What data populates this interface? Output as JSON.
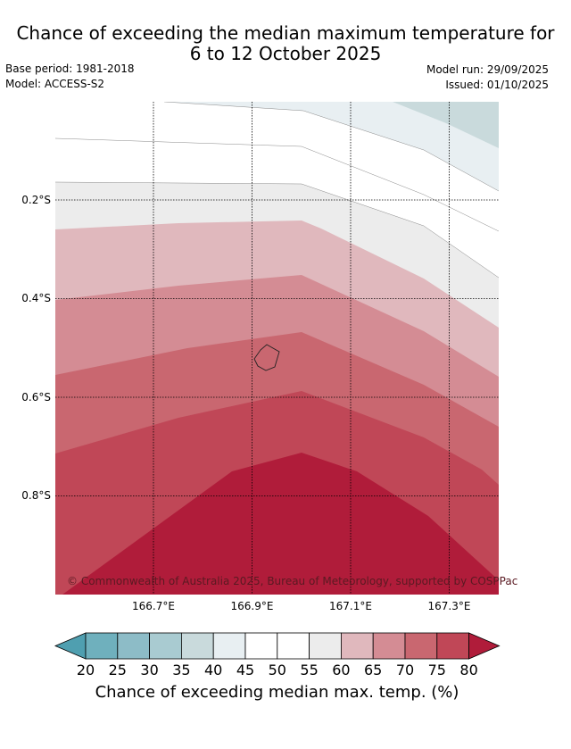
{
  "title": {
    "line1": "Chance of exceeding the median maximum temperature for",
    "line2": "6 to 12 October 2025"
  },
  "meta": {
    "base_period": "Base period: 1981-2018",
    "model": "Model: ACCESS-S2",
    "model_run": "Model run: 29/09/2025",
    "issued": "Issued: 01/10/2025"
  },
  "map": {
    "y_ticks": [
      "0.2°S",
      "0.4°S",
      "0.6°S",
      "0.8°S"
    ],
    "x_ticks": [
      "166.7°E",
      "166.9°E",
      "167.1°E",
      "167.3°E"
    ],
    "copyright": "© Commonwealth of Australia 2025, Bureau of Meteorology, supported by COSPPac"
  },
  "colorbar": {
    "ticks": [
      "20",
      "25",
      "30",
      "35",
      "40",
      "45",
      "50",
      "55",
      "60",
      "65",
      "70",
      "75",
      "80"
    ],
    "label": "Chance of exceeding median max. temp. (%)",
    "colors": [
      "#4f9fb0",
      "#6fb0bd",
      "#8dbcc7",
      "#a9cbd1",
      "#c9dadc",
      "#e8eff2",
      "#ffffff",
      "#ffffff",
      "#ececec",
      "#e0b8bd",
      "#d48c94",
      "#c96770",
      "#c04757",
      "#b01c3a"
    ]
  }
}
